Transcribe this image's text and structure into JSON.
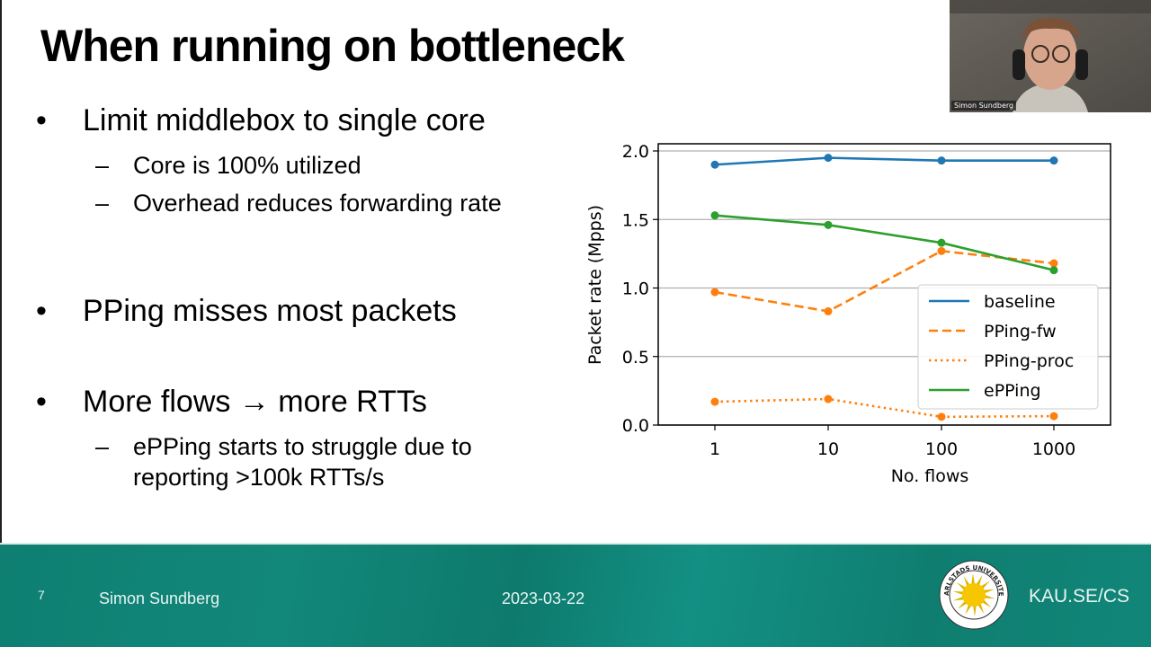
{
  "slide": {
    "title": "When running on bottleneck",
    "bullets": [
      {
        "text": "Limit middlebox to single core",
        "sub": [
          "Core is 100% utilized",
          "Overhead reduces forwarding rate"
        ]
      },
      {
        "text": "PPing misses most packets",
        "sub": []
      },
      {
        "text": "More flows → more RTTs",
        "sub": [
          "ePPing starts to struggle due to reporting >100k RTTs/s"
        ]
      }
    ],
    "bullet_glyph": "•",
    "sub_glyph": "–"
  },
  "footer": {
    "page_number": "7",
    "author": "Simon Sundberg",
    "date": "2023-03-22",
    "site": "KAU.SE/CS",
    "logo_text": "KARLSTADS UNIVERSITET",
    "background_color": "#0f8073"
  },
  "webcam": {
    "participant_name": "Simon Sundberg"
  },
  "chart_data": {
    "type": "line",
    "title": "",
    "xlabel": "No. flows",
    "ylabel": "Packet rate (Mpps)",
    "x": [
      1,
      10,
      100,
      1000
    ],
    "x_tick_labels": [
      "1",
      "10",
      "100",
      "1000"
    ],
    "x_scale": "log",
    "y_ticks": [
      0.0,
      0.5,
      1.0,
      1.5,
      2.0
    ],
    "y_tick_labels": [
      "0.0",
      "0.5",
      "1.0",
      "1.5",
      "2.0"
    ],
    "ylim": [
      0.0,
      2.05
    ],
    "grid": "horizontal",
    "legend_position": "lower right",
    "series": [
      {
        "name": "baseline",
        "values": [
          1.9,
          1.95,
          1.93,
          1.93
        ],
        "color": "#1f77b4",
        "style": "solid"
      },
      {
        "name": "PPing-fw",
        "values": [
          0.97,
          0.83,
          1.27,
          1.18
        ],
        "color": "#ff7f0e",
        "style": "dashed"
      },
      {
        "name": "PPing-proc",
        "values": [
          0.17,
          0.19,
          0.06,
          0.065
        ],
        "color": "#ff7f0e",
        "style": "dotted"
      },
      {
        "name": "ePPing",
        "values": [
          1.53,
          1.46,
          1.33,
          1.13
        ],
        "color": "#2ca02c",
        "style": "solid"
      }
    ]
  }
}
